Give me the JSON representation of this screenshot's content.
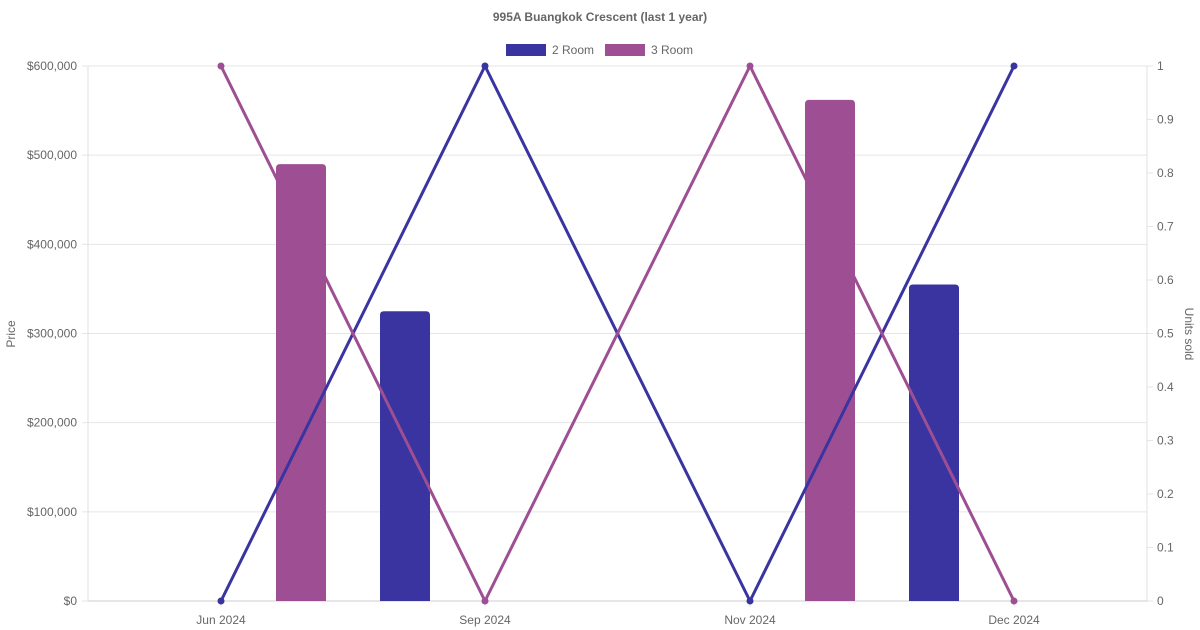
{
  "chart_data": {
    "type": "bar",
    "title": "995A Buangkok Crescent (last 1 year)",
    "categories": [
      "Jun 2024",
      "Sep 2024",
      "Nov 2024",
      "Dec 2024"
    ],
    "y_left": {
      "label": "Price",
      "range": [
        0,
        600000
      ],
      "ticks": [
        "$0",
        "$100,000",
        "$200,000",
        "$300,000",
        "$400,000",
        "$500,000",
        "$600,000"
      ]
    },
    "y_right": {
      "label": "Units sold",
      "range": [
        0,
        1
      ],
      "ticks": [
        "0",
        "0.1",
        "0.2",
        "0.3",
        "0.4",
        "0.5",
        "0.6",
        "0.7",
        "0.8",
        "0.9",
        "1"
      ]
    },
    "grid": true,
    "legend": "top-center",
    "bar_series": [
      {
        "name": "2 Room",
        "color": "#3a34a0",
        "values": [
          null,
          325000,
          null,
          355000
        ]
      },
      {
        "name": "3 Room",
        "color": "#9e4f93",
        "values": [
          490000,
          null,
          562000,
          null
        ]
      }
    ],
    "line_series": [
      {
        "name": "2 Room",
        "color": "#3a34a0",
        "values": [
          0,
          1,
          0,
          1
        ]
      },
      {
        "name": "3 Room",
        "color": "#9e4f93",
        "values": [
          1,
          0,
          1,
          0
        ]
      }
    ],
    "legend_entries": [
      {
        "label": "2 Room",
        "color": "#3a34a0"
      },
      {
        "label": "3 Room",
        "color": "#9e4f93"
      }
    ]
  }
}
